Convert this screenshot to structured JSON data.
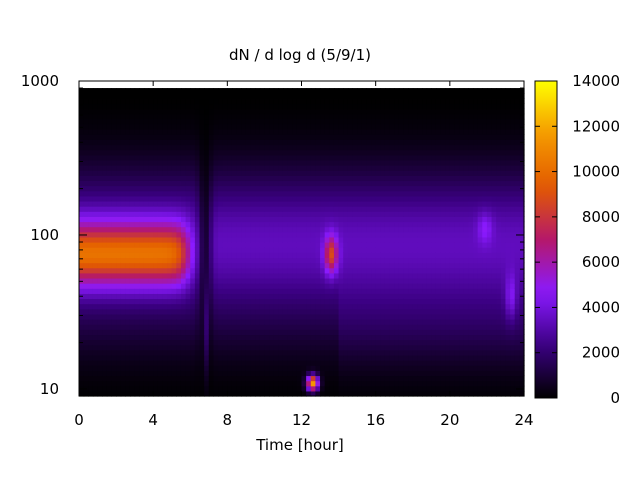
{
  "chart_data": {
    "type": "heatmap",
    "title": "dN / d log d (5/9/1)",
    "xlabel": "Time [hour]",
    "ylabel": "",
    "xlim": [
      0,
      24
    ],
    "ylim": [
      9,
      1000
    ],
    "y_scale": "log",
    "x_ticks": [
      "0",
      "4",
      "8",
      "12",
      "16",
      "20",
      "24"
    ],
    "x_tick_values": [
      0,
      4,
      8,
      12,
      16,
      20,
      24
    ],
    "y_ticks": [
      "10",
      "100",
      "1000"
    ],
    "y_tick_values": [
      10,
      100,
      1000
    ],
    "colorbar": {
      "range": [
        0,
        14000
      ],
      "ticks": [
        "0",
        "2000",
        "4000",
        "6000",
        "8000",
        "10000",
        "12000",
        "14000"
      ],
      "tick_values": [
        0,
        2000,
        4000,
        6000,
        8000,
        10000,
        12000,
        14000
      ],
      "palette": [
        "#000000",
        "#3b0082",
        "#8a1aff",
        "#b5186a",
        "#e25a00",
        "#f59a00",
        "#ffff00"
      ]
    },
    "grid": false,
    "legend": "none",
    "features": [
      {
        "name": "band",
        "t_start": 0,
        "t_end": 5.8,
        "d_center": 75,
        "level": 9500
      },
      {
        "name": "gap",
        "t_center": 6.8,
        "level": 500
      },
      {
        "name": "burst",
        "t_center": 13.6,
        "d_center": 75,
        "level": 8500
      },
      {
        "name": "burst",
        "t_center": 12.6,
        "d_center": 11,
        "level": 11500
      }
    ]
  }
}
